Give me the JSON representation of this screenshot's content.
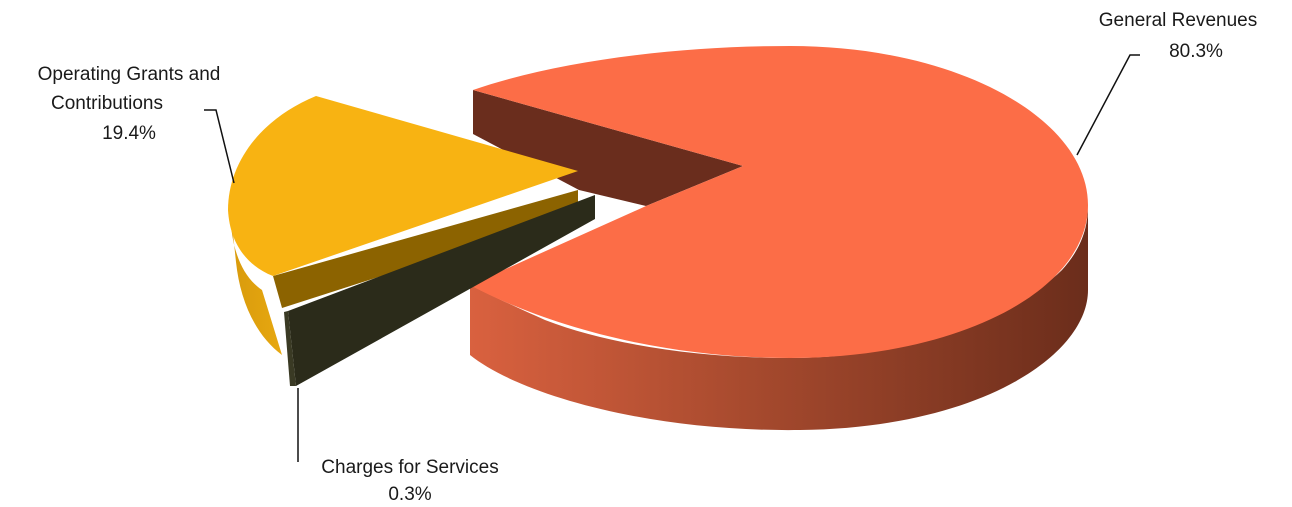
{
  "chart_data": {
    "type": "pie",
    "style": "3d-exploded",
    "title": "",
    "slices": [
      {
        "label": "General Revenues",
        "value": 80.3,
        "value_label": "80.3%",
        "color": "#FC6D47"
      },
      {
        "label_lines": [
          "Operating Grants and",
          "Contributions"
        ],
        "value": 19.4,
        "value_label": "19.4%",
        "color": "#F8B312"
      },
      {
        "label": "Charges for Services",
        "value": 0.3,
        "value_label": "0.3%",
        "color": "#2B2B1A"
      }
    ]
  }
}
